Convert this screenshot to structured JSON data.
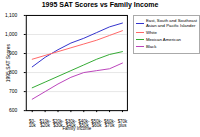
{
  "chart_data": {
    "type": "line",
    "title": "1995 SAT Scores vs Family Income",
    "xlabel": "Family Income",
    "ylabel": "1995 SAT Scores",
    "categories": [
      "$0-\n10k",
      "$10k-\n$20k",
      "$20k-\n$30k",
      "$30k-\n$40k",
      "$40k-\n$50k",
      "$50k-\n$60k",
      "$60k-\n$70k",
      "$70k\nplus"
    ],
    "series": [
      {
        "name": "East, South and Southeast\nAsian and Pacific Islander",
        "color": "#3333cc",
        "values": [
          830,
          880,
          920,
          955,
          980,
          1010,
          1040,
          1060
        ]
      },
      {
        "name": "White",
        "color": "#ff6666",
        "values": [
          870,
          890,
          910,
          930,
          950,
          970,
          995,
          1020
        ]
      },
      {
        "name": "Mexican American",
        "color": "#33aa33",
        "values": [
          720,
          750,
          780,
          810,
          840,
          870,
          895,
          910
        ]
      },
      {
        "name": "Black",
        "color": "#bb44bb",
        "values": [
          660,
          700,
          740,
          775,
          800,
          810,
          820,
          850
        ]
      }
    ],
    "ylim": [
      600,
      1100
    ],
    "yticks": [
      600,
      700,
      800,
      900,
      1000,
      1100
    ],
    "grid": true,
    "legend": "right"
  }
}
